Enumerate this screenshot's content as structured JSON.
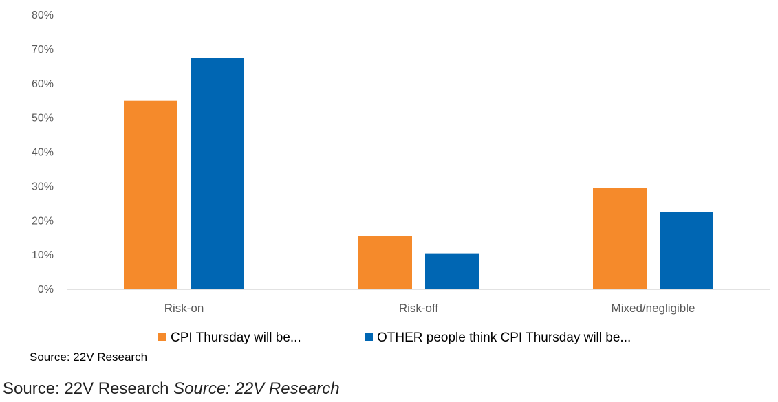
{
  "chart_data": {
    "type": "bar",
    "categories": [
      "Risk-on",
      "Risk-off",
      "Mixed/negligible"
    ],
    "series": [
      {
        "name": "CPI Thursday will be...",
        "color": "#f58a2b",
        "values": [
          55,
          15.5,
          29.5
        ]
      },
      {
        "name": "OTHER people think CPI Thursday will be...",
        "color": "#0066b3",
        "values": [
          67.5,
          10.5,
          22.5
        ]
      }
    ],
    "ylim": [
      0,
      80
    ],
    "yticks": [
      "0%",
      "10%",
      "20%",
      "30%",
      "40%",
      "50%",
      "60%",
      "70%",
      "80%"
    ],
    "grid": false,
    "legend_position": "bottom",
    "source": "Source: 22V Research"
  },
  "caption": {
    "source_text": "Source: 22V Research",
    "source_italic": "Source: 22V Research"
  }
}
